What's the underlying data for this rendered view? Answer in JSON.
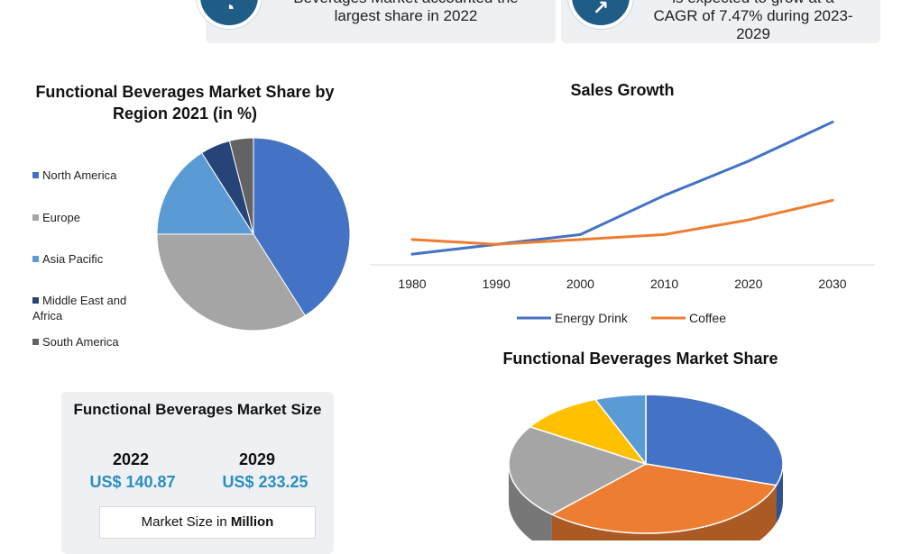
{
  "top_cards": [
    {
      "text_line1": "Beverages Market accounted the",
      "text_line2": "largest share in 2022",
      "icon": "pie-chart-icon"
    },
    {
      "text_line1": "is expected to grow at a",
      "text_line2": "CAGR of 7.47% during 2023-",
      "text_line3": "2029",
      "icon": "growth-icon"
    }
  ],
  "size_panel": {
    "title": "Functional Beverages Market Size",
    "year_1": "2022",
    "value_1": "US$ 140.87",
    "year_2": "2029",
    "value_2": "US$ 233.25",
    "unit_prefix": "Market Size in ",
    "unit_bold": "Million"
  },
  "colors": {
    "blue": "#4472c4",
    "gray": "#a5a5a5",
    "light_blue": "#5b9bd5",
    "navy": "#264478",
    "dark_gray": "#636363",
    "orange": "#ed7d31",
    "gold": "#ffc000",
    "value_text": "#2a8fbd"
  },
  "chart_data": [
    {
      "type": "pie",
      "title": "Functional Beverages Market Share by Region 2021 (in %)",
      "categories": [
        "North America",
        "Europe",
        "Asia Pacific",
        "Middle East and Africa",
        "South America"
      ],
      "legend_lines": [
        [
          "North America"
        ],
        [
          "Europe"
        ],
        [
          "Asia Pacific"
        ],
        [
          "Middle East and",
          "Africa"
        ],
        [
          "South America"
        ]
      ],
      "values": [
        41,
        34,
        16,
        5,
        4
      ],
      "colors": [
        "#4472c4",
        "#a5a5a5",
        "#5b9bd5",
        "#264478",
        "#636363"
      ],
      "legend_position": "left"
    },
    {
      "type": "line",
      "title": "Sales Growth",
      "x": [
        1980,
        1990,
        2000,
        2010,
        2020,
        2030
      ],
      "series": [
        {
          "name": "Energy Drink",
          "values": [
            1.0,
            2.0,
            3.0,
            7.0,
            10.5,
            14.5
          ],
          "color": "#4472c4"
        },
        {
          "name": "Coffee",
          "values": [
            2.5,
            2.0,
            2.5,
            3.0,
            4.5,
            6.5
          ],
          "color": "#ed7d31"
        }
      ],
      "ylim": [
        0,
        15
      ],
      "legend_position": "bottom"
    },
    {
      "type": "pie",
      "title": "Functional Beverages Market Share",
      "values": [
        30,
        32,
        22,
        10,
        6
      ],
      "colors": [
        "#4472c4",
        "#ed7d31",
        "#a5a5a5",
        "#ffc000",
        "#5b9bd5"
      ],
      "style": "3d"
    }
  ]
}
